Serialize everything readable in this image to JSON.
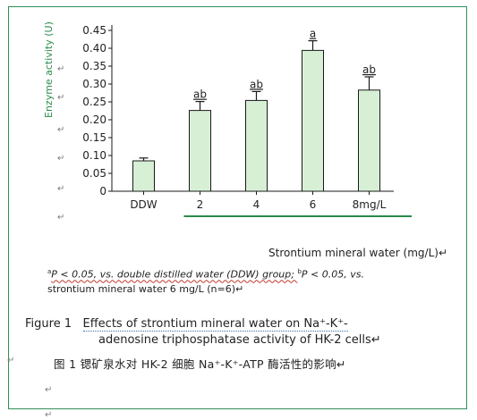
{
  "chart_data": {
    "type": "bar",
    "categories": [
      "DDW",
      "2",
      "4",
      "6",
      "8"
    ],
    "unit_suffix": "mg/L",
    "values": [
      0.085,
      0.226,
      0.254,
      0.394,
      0.283
    ],
    "errors": [
      0.008,
      0.025,
      0.025,
      0.027,
      0.037
    ],
    "annotations": [
      "",
      "ab",
      "ab",
      "a",
      "ab"
    ],
    "ylabel": "Enzyme activity (U)",
    "xlabel": "Strontium mineral water (mg/L)",
    "ylim": [
      0,
      0.45
    ],
    "yticks": [
      "0",
      "0.05",
      "0.10",
      "0.15",
      "0.20",
      "0.25",
      "0.30",
      "0.35",
      "0.40",
      "0.45"
    ],
    "bar_color": "#d7f0d5",
    "axis_color": "#1a1a1a",
    "accent_color": "#2a8a4a"
  },
  "footnote": {
    "line1": "P < 0.05, vs. double distilled water (DDW) group; ",
    "sup_a": "a",
    "sup_b": "b",
    "mid": "P < 0.05, vs.",
    "line2": "strontium mineral water 6 mg/L (n=6)"
  },
  "caption_en": {
    "label": "Figure 1",
    "line1": "Effects of strontium mineral water on Na⁺-K⁺-",
    "line2": "adenosine triphosphatase activity of HK-2 cells"
  },
  "caption_zh": {
    "text": "图 1   锶矿泉水对 HK-2 细胞 Na⁺-K⁺-ATP 酶活性的影响"
  },
  "para_mark": "↵"
}
